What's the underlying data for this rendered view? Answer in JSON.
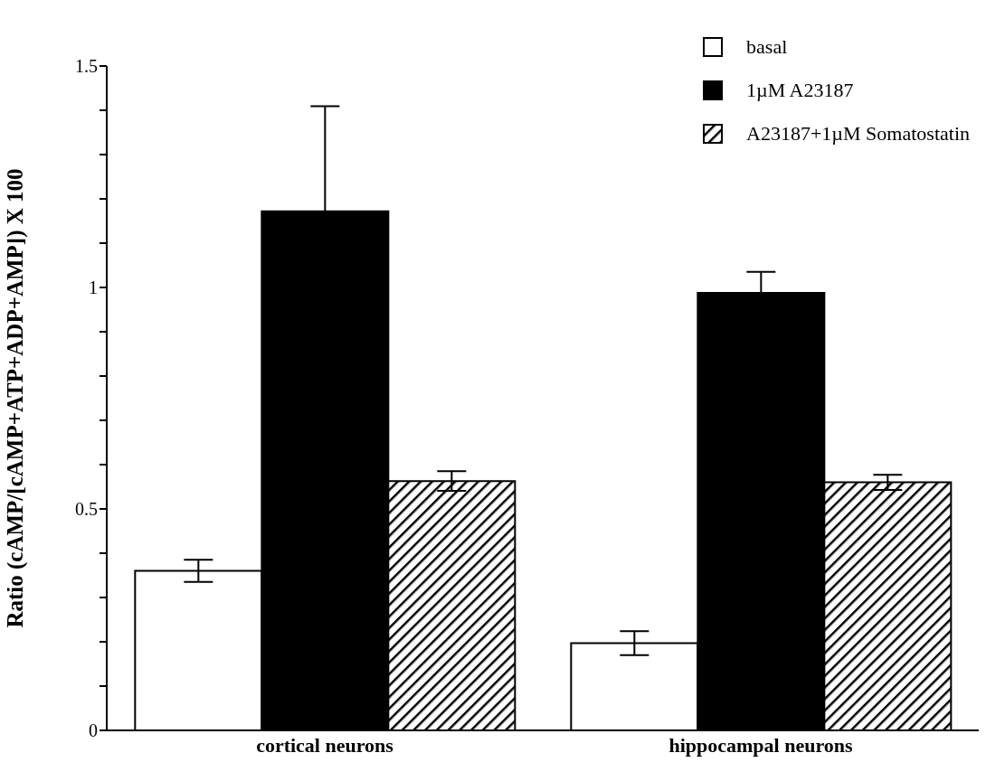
{
  "chart_data": {
    "type": "bar",
    "ylabel": "Ratio  (cAMP/[cAMP+ATP+ADP+AMP])  X  100",
    "categories": [
      "cortical neurons",
      "hippocampal neurons"
    ],
    "series": [
      {
        "name": "basal",
        "color": "#ffffff",
        "values": [
          0.36,
          0.197
        ],
        "errors": [
          0.025,
          0.027
        ]
      },
      {
        "name": "1µM A23187",
        "color": "#000000",
        "values": [
          1.172,
          0.988
        ],
        "errors": [
          0.237,
          0.047
        ]
      },
      {
        "name": "A23187+1µM Somatostatin",
        "color": "#000000",
        "values": [
          0.563,
          0.56
        ],
        "errors": [
          0.022,
          0.017
        ]
      }
    ],
    "ylim": [
      0,
      1.5
    ],
    "yticks": [
      0,
      {
        "value": 0.1,
        "label": null
      },
      {
        "value": 0.2,
        "label": null
      },
      {
        "value": 0.3,
        "label": null
      },
      {
        "value": 0.4,
        "label": null
      },
      0.5,
      {
        "value": 0.6,
        "label": null
      },
      {
        "value": 0.7,
        "label": null
      },
      {
        "value": 0.8,
        "label": null
      },
      {
        "value": 0.9,
        "label": null
      },
      1,
      {
        "value": 1.1,
        "label": null
      },
      {
        "value": 1.2,
        "label": null
      },
      {
        "value": 1.3,
        "label": null
      },
      {
        "value": 1.4,
        "label": null
      },
      1.5
    ],
    "legend": "top right"
  }
}
